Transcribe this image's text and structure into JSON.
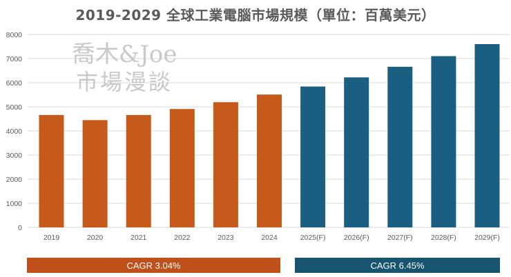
{
  "chart_data": {
    "type": "bar",
    "title": "2019-2029 全球工業電腦市場規模（單位：百萬美元）",
    "categories": [
      "2019",
      "2020",
      "2021",
      "2022",
      "2023",
      "2024",
      "2025(F)",
      "2026(F)",
      "2027(F)",
      "2028(F)",
      "2029(F)"
    ],
    "values": [
      4660,
      4450,
      4660,
      4910,
      5190,
      5510,
      5840,
      6220,
      6660,
      7100,
      7600
    ],
    "ylim": [
      0,
      8000
    ],
    "yticks": [
      0,
      1000,
      2000,
      3000,
      4000,
      5000,
      6000,
      7000,
      8000
    ],
    "grid": true,
    "xlabel": "",
    "ylabel": "",
    "colors": {
      "historical": "#C55A1B",
      "forecast": "#1A5E82",
      "gridline": "#d9d9d9",
      "cagr_historical": "#C0501A",
      "cagr_forecast": "#17546F"
    },
    "cagr": [
      {
        "label": "CAGR 3.04%",
        "period": "historical"
      },
      {
        "label": "CAGR 6.45%",
        "period": "forecast"
      }
    ]
  },
  "watermark": {
    "line1": "喬木&Joe",
    "line2": "市場漫談"
  }
}
